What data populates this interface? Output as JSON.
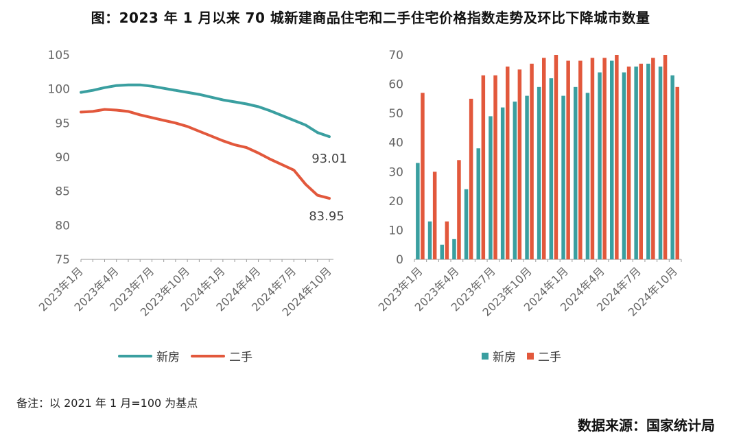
{
  "title": "图：2023 年 1 月以来 70 城新建商品住宅和二手住宅价格指数走势及环比下降城市数量",
  "note": "备注：以 2021 年 1 月=100 为基点",
  "source": "数据来源：国家统计局",
  "colors": {
    "new": "#3a9fa0",
    "second": "#e2583c",
    "axis": "#999999",
    "tick": "#666666"
  },
  "chart_data": [
    {
      "type": "line",
      "x": [
        "2023年1月",
        "2023年2月",
        "2023年3月",
        "2023年4月",
        "2023年5月",
        "2023年6月",
        "2023年7月",
        "2023年8月",
        "2023年9月",
        "2023年10月",
        "2023年11月",
        "2023年12月",
        "2024年1月",
        "2024年2月",
        "2024年3月",
        "2024年4月",
        "2024年5月",
        "2024年6月",
        "2024年7月",
        "2024年8月",
        "2024年9月",
        "2024年10月"
      ],
      "xticks": [
        "2023年1月",
        "2023年4月",
        "2023年7月",
        "2023年10月",
        "2024年1月",
        "2024年4月",
        "2024年7月",
        "2024年10月"
      ],
      "ylim": [
        75,
        105
      ],
      "yticks": [
        75,
        80,
        85,
        90,
        95,
        100,
        105
      ],
      "series": [
        {
          "name": "新房",
          "values": [
            99.5,
            99.8,
            100.2,
            100.5,
            100.6,
            100.6,
            100.4,
            100.1,
            99.8,
            99.5,
            99.2,
            98.8,
            98.4,
            98.1,
            97.8,
            97.4,
            96.8,
            96.1,
            95.4,
            94.7,
            93.6,
            93.01
          ]
        },
        {
          "name": "二手",
          "values": [
            96.6,
            96.7,
            97.0,
            96.9,
            96.7,
            96.2,
            95.8,
            95.4,
            95.0,
            94.5,
            93.8,
            93.1,
            92.4,
            91.8,
            91.4,
            90.6,
            89.7,
            88.9,
            88.1,
            86.0,
            84.4,
            83.95
          ]
        }
      ],
      "labels": [
        "93.01",
        "83.95"
      ]
    },
    {
      "type": "bar",
      "categories": [
        "2023年1月",
        "2023年2月",
        "2023年3月",
        "2023年4月",
        "2023年5月",
        "2023年6月",
        "2023年7月",
        "2023年8月",
        "2023年9月",
        "2023年10月",
        "2023年11月",
        "2023年12月",
        "2024年1月",
        "2024年2月",
        "2024年3月",
        "2024年4月",
        "2024年5月",
        "2024年6月",
        "2024年7月",
        "2024年8月",
        "2024年9月",
        "2024年10月"
      ],
      "xticks": [
        "2023年1月",
        "2023年4月",
        "2023年7月",
        "2023年10月",
        "2024年1月",
        "2024年4月",
        "2024年7月",
        "2024年10月"
      ],
      "ylim": [
        0,
        70
      ],
      "yticks": [
        0,
        10,
        20,
        30,
        40,
        50,
        60,
        70
      ],
      "series": [
        {
          "name": "新房",
          "values": [
            33,
            13,
            5,
            7,
            24,
            38,
            49,
            52,
            54,
            56,
            59,
            62,
            56,
            59,
            57,
            64,
            68,
            64,
            66,
            67,
            66,
            63
          ]
        },
        {
          "name": "二手",
          "values": [
            57,
            30,
            13,
            34,
            55,
            63,
            63,
            66,
            65,
            67,
            69,
            70,
            68,
            68,
            69,
            69,
            70,
            66,
            67,
            69,
            70,
            59
          ]
        }
      ]
    }
  ]
}
